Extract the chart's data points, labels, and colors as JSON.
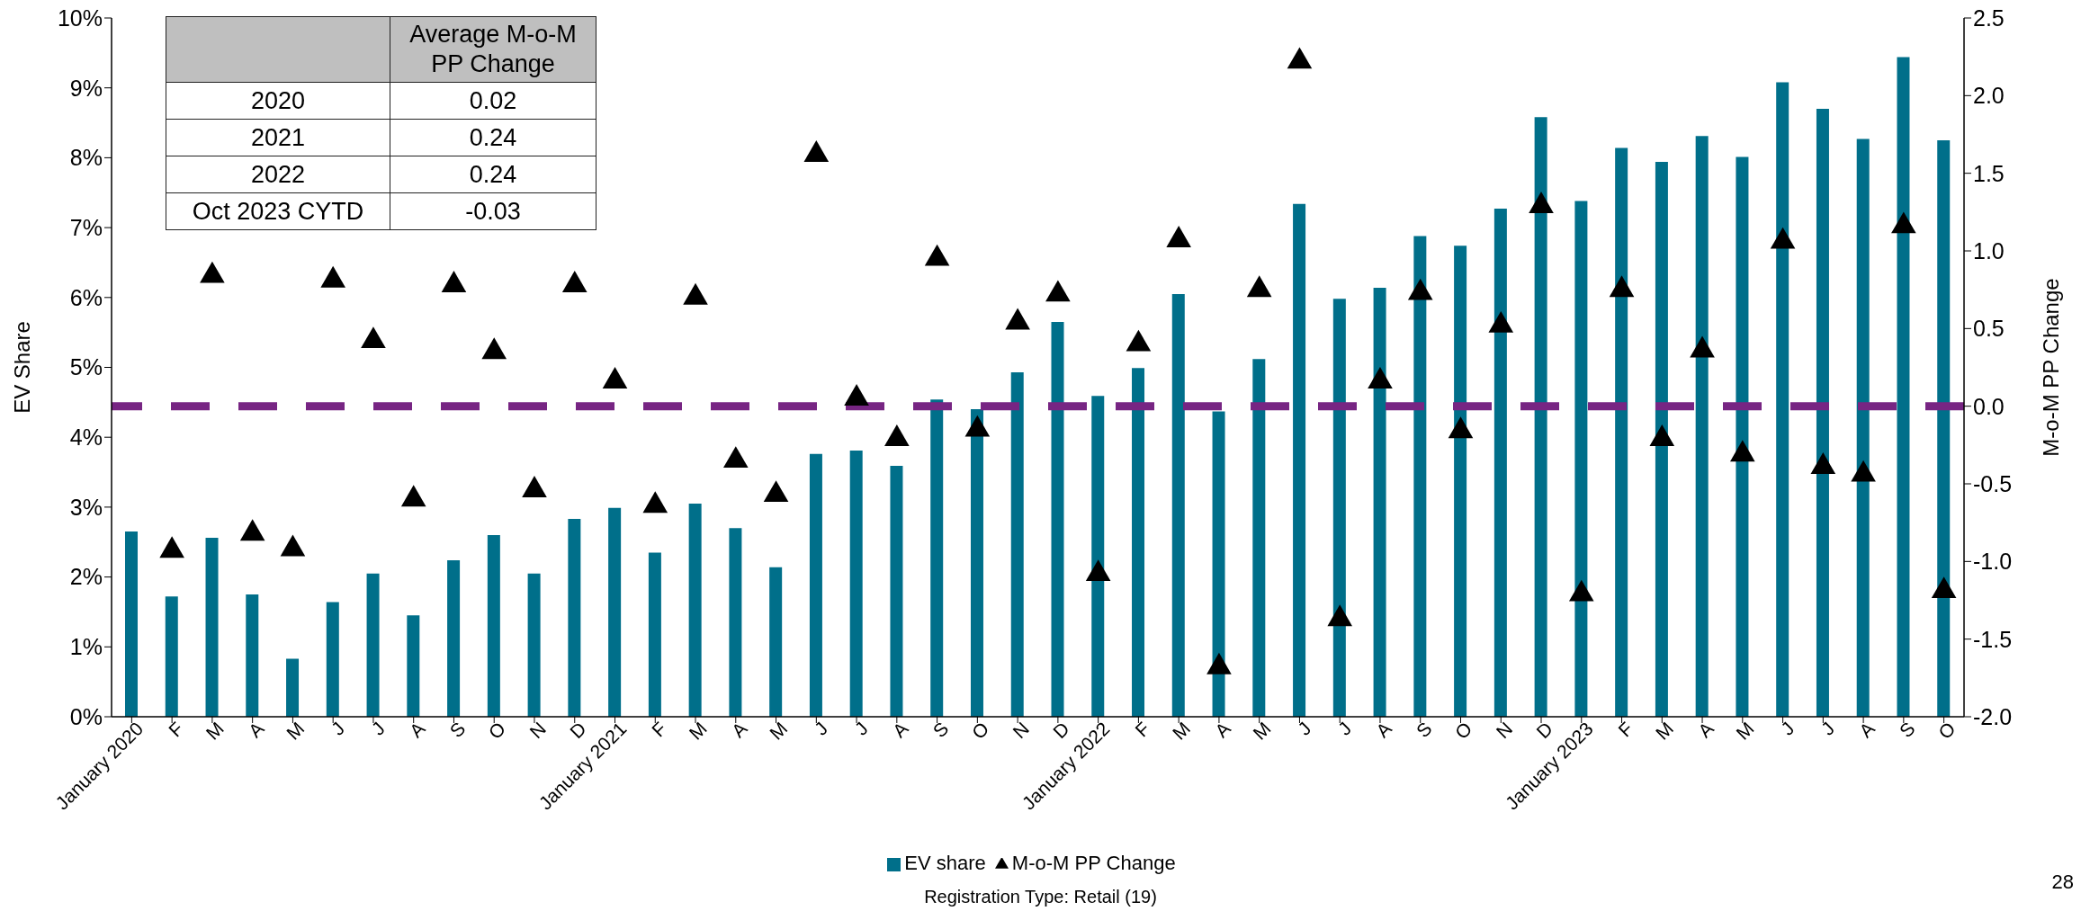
{
  "chart_data": [
    {
      "type": "bar",
      "categories": [
        "January 2020",
        "F",
        "M",
        "A",
        "M",
        "J",
        "J",
        "A",
        "S",
        "O",
        "N",
        "D",
        "January 2021",
        "F",
        "M",
        "A",
        "M",
        "J",
        "J",
        "A",
        "S",
        "O",
        "N",
        "D",
        "January 2022",
        "F",
        "M",
        "A",
        "M",
        "J",
        "J",
        "A",
        "S",
        "O",
        "N",
        "D",
        "January 2023",
        "F",
        "M",
        "A",
        "M",
        "J",
        "J",
        "A",
        "S",
        "O"
      ],
      "series": [
        {
          "name": "EV share",
          "type": "bar",
          "color": "#006f8a",
          "values": [
            2.65,
            1.72,
            2.56,
            1.75,
            0.83,
            1.64,
            2.05,
            1.45,
            2.24,
            2.6,
            2.05,
            2.83,
            2.99,
            2.35,
            3.05,
            2.7,
            2.14,
            3.76,
            3.81,
            3.59,
            4.54,
            4.4,
            4.93,
            5.65,
            4.59,
            4.99,
            6.05,
            4.37,
            5.12,
            7.34,
            5.98,
            6.14,
            6.88,
            6.74,
            7.27,
            8.58,
            7.38,
            8.14,
            7.94,
            8.31,
            8.01,
            9.08,
            8.7,
            8.27,
            9.44,
            8.25
          ]
        },
        {
          "name": "M-o-M PP Change",
          "type": "scatter",
          "axis": "y2",
          "marker": "triangle",
          "color": "#000000",
          "values": [
            null,
            -0.93,
            0.84,
            -0.82,
            -0.92,
            0.81,
            0.42,
            -0.6,
            0.78,
            0.35,
            -0.54,
            0.78,
            0.16,
            -0.64,
            0.7,
            -0.35,
            -0.57,
            1.62,
            0.05,
            -0.21,
            0.95,
            -0.15,
            0.54,
            0.72,
            -1.08,
            0.4,
            1.07,
            -1.68,
            0.75,
            2.22,
            -1.37,
            0.16,
            0.73,
            -0.16,
            0.52,
            1.29,
            -1.21,
            0.75,
            -0.21,
            0.36,
            -0.31,
            1.06,
            -0.39,
            -0.44,
            1.16,
            -1.19
          ]
        }
      ],
      "ylabel": "EV Share",
      "y2label": "M-o-M PP Change",
      "ylim": [
        0,
        10
      ],
      "yticks": [
        {
          "value": 0,
          "label": "0%"
        },
        {
          "value": 1,
          "label": "1%"
        },
        {
          "value": 2,
          "label": "2%"
        },
        {
          "value": 3,
          "label": "3%"
        },
        {
          "value": 4,
          "label": "4%"
        },
        {
          "value": 5,
          "label": "5%"
        },
        {
          "value": 6,
          "label": "6%"
        },
        {
          "value": 7,
          "label": "7%"
        },
        {
          "value": 8,
          "label": "8%"
        },
        {
          "value": 9,
          "label": "9%"
        },
        {
          "value": 10,
          "label": "10%"
        }
      ],
      "y2lim": [
        -2.0,
        2.5
      ],
      "y2ticks": [
        {
          "value": -2,
          "label": "-2.0"
        },
        -1.5,
        {
          "value": -1,
          "label": "-1.0"
        },
        -0.5,
        {
          "value": 0,
          "label": "0.0"
        },
        0.5,
        {
          "value": 1,
          "label": "1.0"
        },
        1.5,
        {
          "value": 2,
          "label": "2.0"
        },
        2.5
      ],
      "ref_lines": [
        {
          "axis": "y2",
          "value": 0,
          "color": "#772583",
          "line_style": "dashed"
        }
      ],
      "legend": "bottom",
      "annotations": [
        "Registration Type: Retail (19)",
        "28"
      ]
    },
    {
      "type": "other",
      "title": "Average M-o-M PP Change",
      "categories": [
        "2020",
        "2021",
        "2022",
        "Oct 2023 CYTD"
      ],
      "values": [
        0.02,
        0.24,
        0.24,
        -0.03
      ],
      "data_labels": true
    }
  ]
}
